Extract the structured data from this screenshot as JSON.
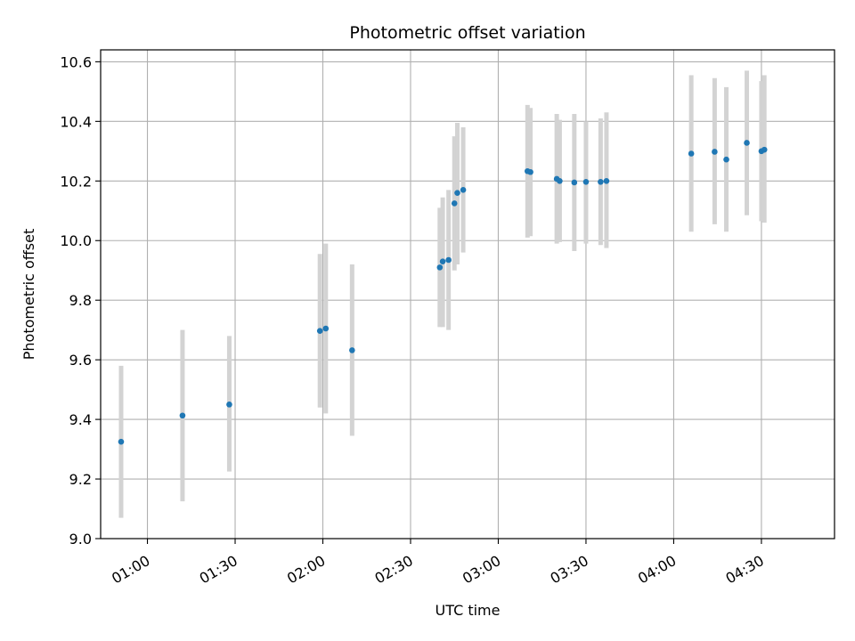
{
  "chart_data": {
    "type": "scatter",
    "title": "Photometric offset variation",
    "xlabel": "UTC time",
    "ylabel": "Photometric offset",
    "x_unit": "time of day (UTC, HH:MM)",
    "xlim": [
      "00:44",
      "04:55"
    ],
    "ylim": [
      9.0,
      10.64
    ],
    "x_ticks": [
      "01:00",
      "01:30",
      "02:00",
      "02:30",
      "03:00",
      "03:30",
      "04:00",
      "04:30"
    ],
    "y_ticks": [
      "9.0",
      "9.2",
      "9.4",
      "9.6",
      "9.8",
      "10.0",
      "10.2",
      "10.4",
      "10.6"
    ],
    "grid": true,
    "colors": {
      "point": "#1f77b4",
      "errorbar": "#d3d3d3",
      "grid": "#b0b0b0"
    },
    "series": [
      {
        "points": [
          {
            "time": "00:51",
            "y": 9.325,
            "low": 9.07,
            "high": 9.58
          },
          {
            "time": "01:12",
            "y": 9.413,
            "low": 9.125,
            "high": 9.7
          },
          {
            "time": "01:28",
            "y": 9.45,
            "low": 9.225,
            "high": 9.68
          },
          {
            "time": "01:59",
            "y": 9.697,
            "low": 9.44,
            "high": 9.955
          },
          {
            "time": "02:01",
            "y": 9.705,
            "low": 9.42,
            "high": 9.99
          },
          {
            "time": "02:10",
            "y": 9.632,
            "low": 9.345,
            "high": 9.92
          },
          {
            "time": "02:40",
            "y": 9.91,
            "low": 9.71,
            "high": 10.11
          },
          {
            "time": "02:41",
            "y": 9.93,
            "low": 9.71,
            "high": 10.145
          },
          {
            "time": "02:43",
            "y": 9.935,
            "low": 9.7,
            "high": 10.17
          },
          {
            "time": "02:45",
            "y": 10.125,
            "low": 9.9,
            "high": 10.35
          },
          {
            "time": "02:46",
            "y": 10.16,
            "low": 9.92,
            "high": 10.395
          },
          {
            "time": "02:48",
            "y": 10.17,
            "low": 9.96,
            "high": 10.38
          },
          {
            "time": "03:10",
            "y": 10.233,
            "low": 10.01,
            "high": 10.455
          },
          {
            "time": "03:11",
            "y": 10.23,
            "low": 10.015,
            "high": 10.445
          },
          {
            "time": "03:20",
            "y": 10.207,
            "low": 9.99,
            "high": 10.425
          },
          {
            "time": "03:21",
            "y": 10.2,
            "low": 9.995,
            "high": 10.405
          },
          {
            "time": "03:26",
            "y": 10.195,
            "low": 9.965,
            "high": 10.425
          },
          {
            "time": "03:30",
            "y": 10.197,
            "low": 9.99,
            "high": 10.4
          },
          {
            "time": "03:35",
            "y": 10.197,
            "low": 9.985,
            "high": 10.41
          },
          {
            "time": "03:37",
            "y": 10.2,
            "low": 9.975,
            "high": 10.43
          },
          {
            "time": "04:06",
            "y": 10.292,
            "low": 10.03,
            "high": 10.555
          },
          {
            "time": "04:14",
            "y": 10.298,
            "low": 10.055,
            "high": 10.545
          },
          {
            "time": "04:18",
            "y": 10.272,
            "low": 10.03,
            "high": 10.515
          },
          {
            "time": "04:25",
            "y": 10.328,
            "low": 10.085,
            "high": 10.57
          },
          {
            "time": "04:30",
            "y": 10.3,
            "low": 10.065,
            "high": 10.535
          },
          {
            "time": "04:31",
            "y": 10.305,
            "low": 10.06,
            "high": 10.555
          }
        ]
      }
    ]
  }
}
